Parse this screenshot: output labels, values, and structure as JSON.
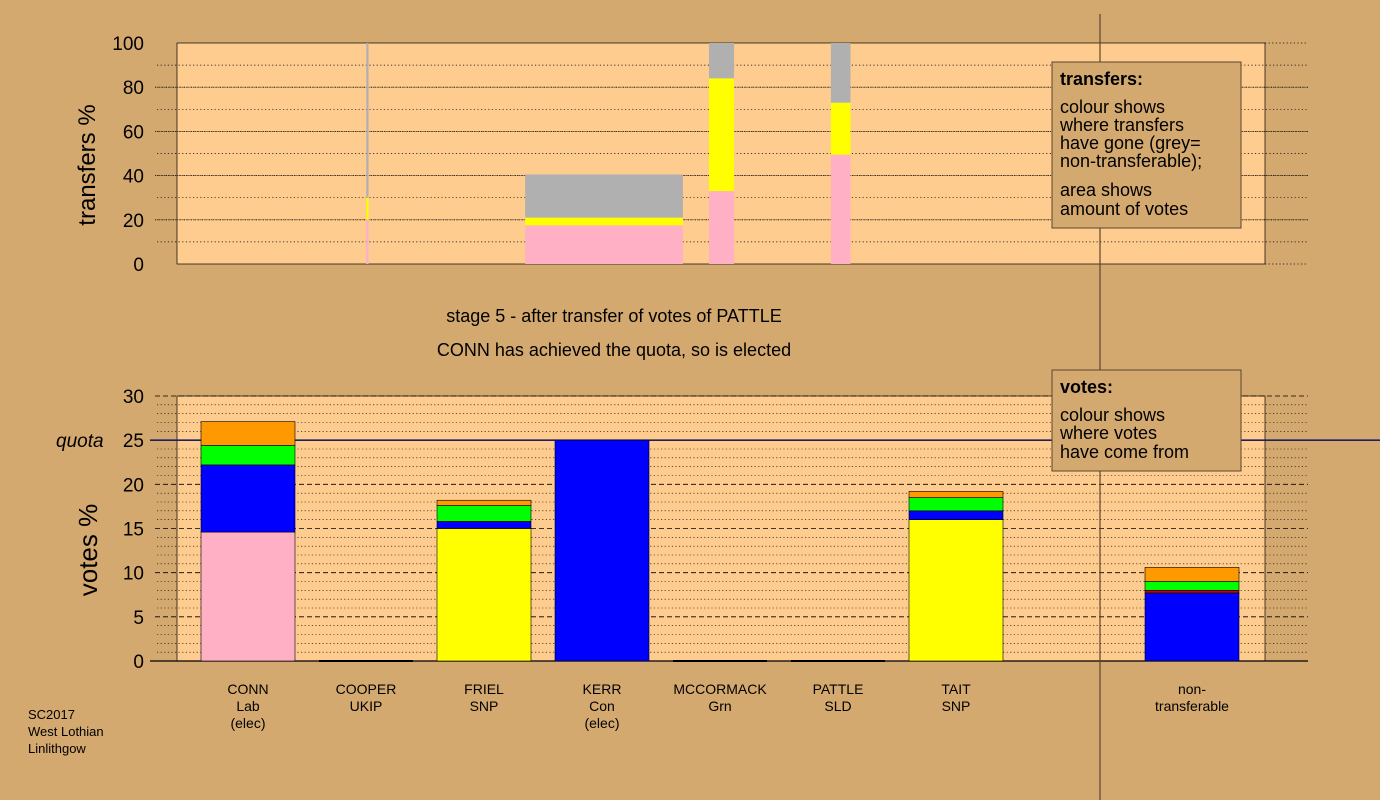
{
  "colors": {
    "background": "#d4a96f",
    "plot_area": "#ffcc8f",
    "pink": "#ffb0c4",
    "yellow": "#ffff00",
    "blue": "#0000ff",
    "green": "#00ff00",
    "orange": "#ff9900",
    "grey": "#b0b0b0",
    "red": "#cc0000"
  },
  "stage": {
    "line1": "stage 5 - after transfer of votes of PATTLE",
    "line2": "CONN has achieved the quota, so is elected"
  },
  "footer": [
    "SC2017",
    "West Lothian",
    "Linlithgow"
  ],
  "quota_label": "quota",
  "transfers_legend": {
    "title": "transfers:",
    "lines1": [
      "colour shows",
      "where transfers",
      "have gone (grey=",
      "non-transferable);"
    ],
    "lines2": [
      "area shows",
      "amount of votes"
    ]
  },
  "votes_legend": {
    "title": "votes:",
    "lines": [
      "colour shows",
      "where votes",
      "have come from"
    ]
  },
  "chart_data": [
    {
      "type": "bar",
      "chart": "transfers",
      "ylabel": "transfers %",
      "ylim": [
        0,
        100
      ],
      "yticks": [
        0,
        20,
        40,
        60,
        80,
        100
      ],
      "grid": "dotted",
      "stacks": [
        {
          "x_from": 0.174,
          "x_to": 0.176,
          "segments": [
            {
              "color": "grey",
              "from": 0,
              "to": 100
            }
          ]
        },
        {
          "x_from": 0.174,
          "x_to": 0.176,
          "segments": [
            {
              "color": "pink",
              "from": 0,
              "to": 20
            },
            {
              "color": "yellow",
              "from": 20,
              "to": 30
            }
          ]
        },
        {
          "x_from": 0.32,
          "x_to": 0.465,
          "segments": [
            {
              "color": "pink",
              "from": 0,
              "to": 17.5
            },
            {
              "color": "yellow",
              "from": 17.5,
              "to": 21
            },
            {
              "color": "grey",
              "from": 21,
              "to": 40.5
            }
          ]
        },
        {
          "x_from": 0.489,
          "x_to": 0.512,
          "segments": [
            {
              "color": "pink",
              "from": 0,
              "to": 33
            },
            {
              "color": "yellow",
              "from": 33,
              "to": 84
            },
            {
              "color": "grey",
              "from": 84,
              "to": 100
            }
          ]
        },
        {
          "x_from": 0.601,
          "x_to": 0.619,
          "segments": [
            {
              "color": "pink",
              "from": 0,
              "to": 49.5
            },
            {
              "color": "yellow",
              "from": 49.5,
              "to": 73
            },
            {
              "color": "grey",
              "from": 73,
              "to": 100
            }
          ]
        }
      ]
    },
    {
      "type": "bar",
      "chart": "votes",
      "ylabel": "votes %",
      "ylim": [
        0,
        30
      ],
      "yticks": [
        0,
        5,
        10,
        15,
        20,
        25,
        30
      ],
      "quota": 25,
      "grid": "dashed",
      "categories": [
        {
          "name": "CONN",
          "party": "Lab",
          "note": "(elec)"
        },
        {
          "name": "COOPER",
          "party": "UKIP",
          "note": ""
        },
        {
          "name": "FRIEL",
          "party": "SNP",
          "note": ""
        },
        {
          "name": "KERR",
          "party": "Con",
          "note": "(elec)"
        },
        {
          "name": "MCCORMACK",
          "party": "Grn",
          "note": ""
        },
        {
          "name": "PATTLE",
          "party": "SLD",
          "note": ""
        },
        {
          "name": "TAIT",
          "party": "SNP",
          "note": ""
        },
        {
          "name": "",
          "party": "",
          "note": ""
        },
        {
          "name": "non-",
          "party": "transferable",
          "note": ""
        }
      ],
      "stacks": [
        [
          {
            "color": "pink",
            "value": 14.6
          },
          {
            "color": "blue",
            "value": 7.6
          },
          {
            "color": "green",
            "value": 2.2
          },
          {
            "color": "orange",
            "value": 2.7
          }
        ],
        [],
        [
          {
            "color": "yellow",
            "value": 15.0
          },
          {
            "color": "blue",
            "value": 0.8
          },
          {
            "color": "green",
            "value": 1.8
          },
          {
            "color": "orange",
            "value": 0.6
          }
        ],
        [
          {
            "color": "blue",
            "value": 25.0
          }
        ],
        [],
        [],
        [
          {
            "color": "yellow",
            "value": 16.0
          },
          {
            "color": "blue",
            "value": 1.0
          },
          {
            "color": "green",
            "value": 1.5
          },
          {
            "color": "orange",
            "value": 0.7
          }
        ],
        [],
        [
          {
            "color": "blue",
            "value": 7.7
          },
          {
            "color": "red",
            "value": 0.3
          },
          {
            "color": "green",
            "value": 1.0
          },
          {
            "color": "orange",
            "value": 1.6
          }
        ]
      ]
    }
  ]
}
